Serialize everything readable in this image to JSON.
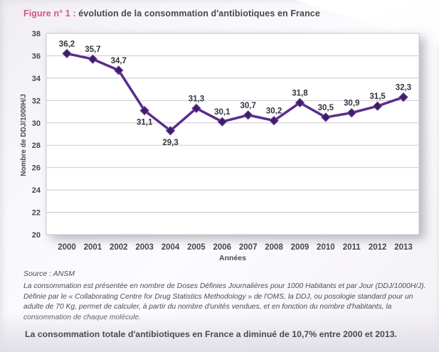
{
  "figure": {
    "title_prefix": "Figure n° 1 :",
    "title_text": " évolution de la consommation d'antibiotiques en France",
    "source": "Source : ANSM",
    "footnote": "La consommation est présentée en nombre de Doses Définies Journalières pour 1000 Habitants et par Jour (DDJ/1000H/J). Définie par le « Collaborating Centre for Drug Statistics Methodology » de l'OMS, la DDJ, ou posologie standard pour un adulte de 70 Kg, permet de calculer, à partir du nombre d'unités vendues, et en fonction du nombre d'habitants, la consommation de chaque molécule.",
    "highlight": "La consommation totale d'antibiotiques en France a diminué de 10,7% entre 2000 et 2013."
  },
  "chart_data": {
    "type": "line",
    "title": "",
    "xlabel": "Années",
    "ylabel": "Nombre de DDJ/1000H/J",
    "categories": [
      "2000",
      "2001",
      "2002",
      "2003",
      "2004",
      "2005",
      "2006",
      "2007",
      "2008",
      "2009",
      "2010",
      "2011",
      "2012",
      "2013"
    ],
    "values": [
      36.2,
      35.7,
      34.7,
      31.1,
      29.3,
      31.3,
      30.1,
      30.7,
      30.2,
      31.8,
      30.5,
      30.9,
      31.5,
      32.3
    ],
    "value_labels": [
      "36,2",
      "35,7",
      "34,7",
      "31,1",
      "29,3",
      "31,3",
      "30,1",
      "30,7",
      "30,2",
      "31,8",
      "30,5",
      "30,9",
      "31,5",
      "32,3"
    ],
    "label_below": [
      false,
      false,
      false,
      true,
      true,
      false,
      false,
      false,
      false,
      false,
      false,
      false,
      false,
      false
    ],
    "ylim": [
      20,
      38
    ],
    "ytick_step": 2,
    "grid": true,
    "legend_position": "none",
    "marker": "diamond",
    "colors": {
      "line": "#5b2d8e",
      "marker_fill": "#3f1e66",
      "marker_stroke": "#6b43a0",
      "grid": "#c9c8ce",
      "plot_border": "#c6c4cb",
      "plot_bg": "#ffffff",
      "tick_text": "#46464f",
      "label_text": "#34343e",
      "title_accent": "#d9518d"
    }
  }
}
